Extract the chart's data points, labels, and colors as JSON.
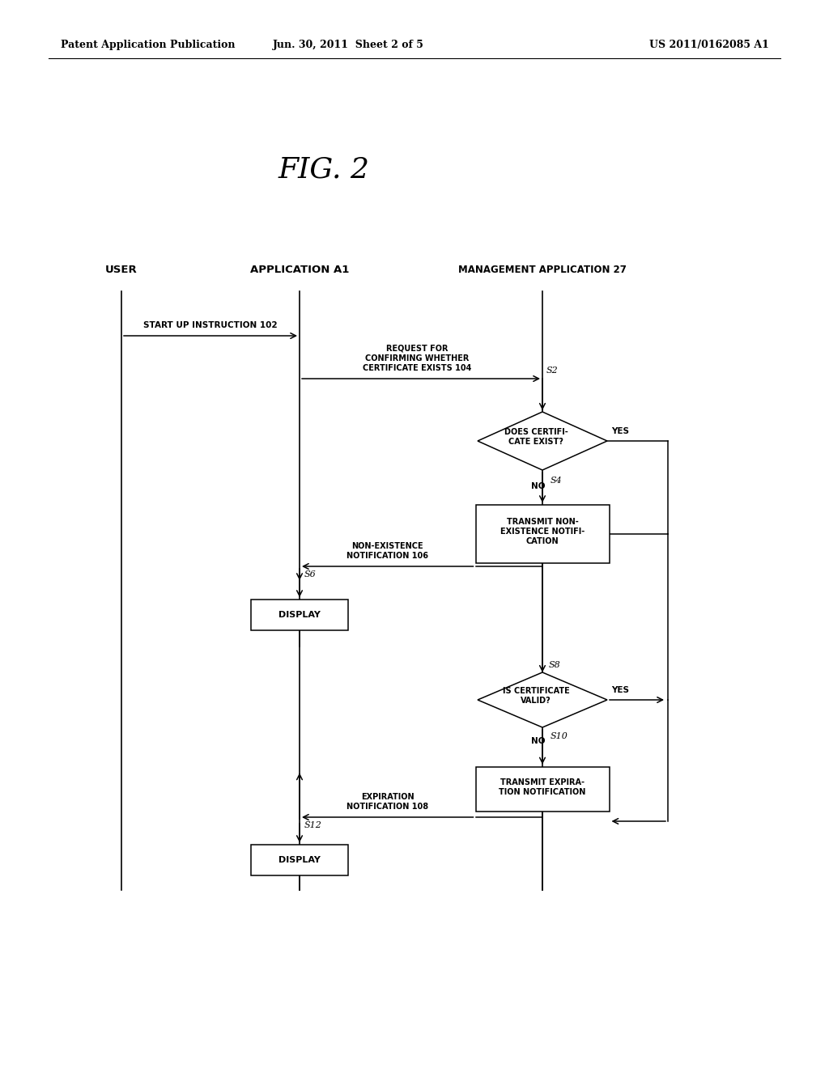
{
  "title": "FIG. 2",
  "header_left": "Patent Application Publication",
  "header_center": "Jun. 30, 2011  Sheet 2 of 5",
  "header_right": "US 2011/0162085 A1",
  "bg_color": "#ffffff"
}
